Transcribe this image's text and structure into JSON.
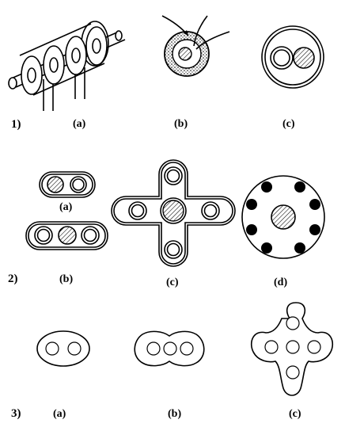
{
  "rows": [
    {
      "label": "1)",
      "subs": [
        "(a)",
        "(b)",
        "(c)"
      ]
    },
    {
      "label": "2)",
      "subs": [
        "(a)",
        "(b)",
        "(c)",
        "(d)"
      ]
    },
    {
      "label": "3)",
      "subs": [
        "(a)",
        "(b)",
        "(c)"
      ]
    }
  ],
  "icons": {
    "r1a": "solenoid-coil-icon",
    "r1b": "coaxial-cross-section-icon",
    "r1c": "two-conductor-cable-icon",
    "r2a": "two-conductor-sheath-icon",
    "r2b": "three-conductor-flat-sheath-icon",
    "r2c": "cross-shaped-sheath-icon",
    "r2d": "ring-of-conductors-icon",
    "r3a": "oval-two-hole-icon",
    "r3b": "three-lobe-three-hole-icon",
    "r3c": "four-lobe-five-hole-icon"
  }
}
